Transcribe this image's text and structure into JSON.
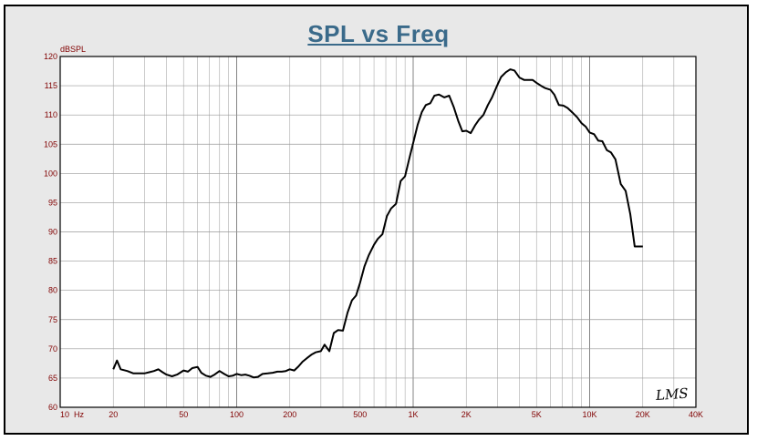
{
  "chart_data": {
    "type": "line",
    "title": "SPL vs Freq",
    "ylabel": "dBSPL",
    "xlabel_unit": "Hz",
    "x_scale": "log",
    "xlim": [
      10,
      40000
    ],
    "ylim": [
      60,
      120
    ],
    "grid": true,
    "y_ticks": [
      "60",
      "65",
      "70",
      "75",
      "80",
      "85",
      "90",
      "95",
      "100",
      "105",
      "110",
      "115",
      "120"
    ],
    "x_ticks": [
      {
        "value": 10,
        "label": "10"
      },
      {
        "value": 20,
        "label": "20"
      },
      {
        "value": 50,
        "label": "50"
      },
      {
        "value": 100,
        "label": "100"
      },
      {
        "value": 200,
        "label": "200"
      },
      {
        "value": 500,
        "label": "500"
      },
      {
        "value": 1000,
        "label": "1K"
      },
      {
        "value": 2000,
        "label": "2K"
      },
      {
        "value": 5000,
        "label": "5K"
      },
      {
        "value": 10000,
        "label": "10K"
      },
      {
        "value": 20000,
        "label": "20K"
      },
      {
        "value": 40000,
        "label": "40K"
      }
    ],
    "series": [
      {
        "color": "#000000",
        "x": [
          20,
          21,
          22,
          24,
          26,
          28,
          30,
          32,
          34,
          36,
          38,
          40,
          43,
          46,
          50,
          53,
          56,
          60,
          63,
          67,
          71,
          75,
          80,
          85,
          90,
          95,
          100,
          106,
          112,
          118,
          125,
          132,
          140,
          150,
          160,
          170,
          180,
          190,
          200,
          212,
          224,
          236,
          250,
          265,
          280,
          300,
          315,
          335,
          355,
          375,
          400,
          425,
          450,
          475,
          500,
          530,
          560,
          600,
          630,
          670,
          710,
          750,
          800,
          850,
          900,
          950,
          1000,
          1060,
          1120,
          1180,
          1250,
          1320,
          1400,
          1500,
          1600,
          1700,
          1800,
          1900,
          2000,
          2120,
          2240,
          2360,
          2500,
          2650,
          2800,
          3000,
          3150,
          3350,
          3550,
          3750,
          4000,
          4250,
          4500,
          4750,
          5000,
          5300,
          5600,
          6000,
          6300,
          6700,
          7100,
          7500,
          8000,
          8500,
          9000,
          9500,
          10000,
          10600,
          11200,
          11800,
          12500,
          13200,
          14000,
          15000,
          16000,
          17000,
          18000,
          19000,
          20000
        ],
        "y": [
          66.5,
          68.0,
          66.5,
          66.2,
          65.8,
          65.8,
          65.8,
          66.0,
          66.2,
          66.5,
          66.0,
          65.6,
          65.3,
          65.6,
          66.3,
          66.1,
          66.7,
          66.9,
          65.9,
          65.4,
          65.2,
          65.6,
          66.2,
          65.7,
          65.3,
          65.4,
          65.7,
          65.5,
          65.6,
          65.4,
          65.1,
          65.2,
          65.7,
          65.8,
          65.9,
          66.1,
          66.1,
          66.2,
          66.5,
          66.3,
          67.0,
          67.8,
          68.4,
          69.0,
          69.4,
          69.6,
          70.7,
          69.6,
          72.7,
          73.2,
          73.1,
          76.2,
          78.3,
          79.1,
          81.3,
          84.1,
          86.0,
          87.8,
          88.8,
          89.6,
          92.7,
          94.0,
          94.8,
          98.7,
          99.5,
          102.5,
          105.2,
          108.3,
          110.5,
          111.7,
          112.0,
          113.3,
          113.5,
          113.0,
          113.3,
          111.3,
          109.0,
          107.2,
          107.3,
          106.9,
          108.2,
          109.2,
          110.0,
          111.7,
          113.0,
          115.1,
          116.5,
          117.3,
          117.8,
          117.6,
          116.4,
          116.0,
          116.0,
          116.0,
          115.5,
          115.0,
          114.6,
          114.3,
          113.5,
          111.7,
          111.6,
          111.2,
          110.4,
          109.6,
          108.6,
          108.0,
          107.0,
          106.7,
          105.6,
          105.5,
          104.0,
          103.6,
          102.4,
          98.2,
          97.0,
          93.0,
          87.5,
          87.5,
          87.5
        ]
      }
    ]
  },
  "logo_text": "LMS"
}
